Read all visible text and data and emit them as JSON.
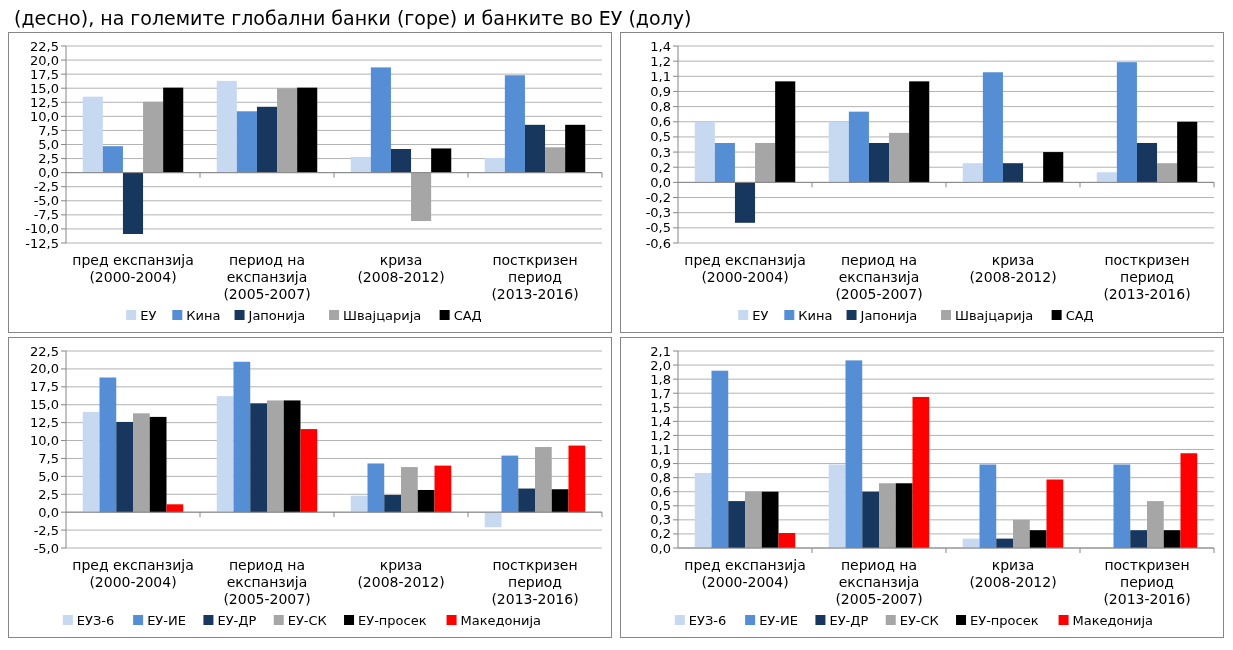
{
  "chart_data": [
    {
      "type": "bar",
      "title": "(десно), на големите глобални банки (горе) и банките во ЕУ (долу)",
      "categories": [
        "пред експанзија (2000-2004)",
        "период на експанзија (2005-2007)",
        "криза (2008-2012)",
        "посткризен период (2013-2016)"
      ],
      "series": [
        {
          "name": "ЕУ",
          "color": "#c6d9f1",
          "values": [
            13.5,
            16.3,
            2.8,
            2.6
          ]
        },
        {
          "name": "Кина",
          "color": "#558ed5",
          "values": [
            4.7,
            10.9,
            18.7,
            17.3
          ]
        },
        {
          "name": "Јапонија",
          "color": "#17375e",
          "values": [
            -10.9,
            11.7,
            4.2,
            8.5
          ]
        },
        {
          "name": "Швајцарија",
          "color": "#a6a6a6",
          "values": [
            12.6,
            15.0,
            -8.6,
            4.5
          ]
        },
        {
          "name": "САД",
          "color": "#000000",
          "values": [
            15.1,
            15.1,
            4.3,
            8.5
          ]
        }
      ],
      "ylim": [
        -12.5,
        22.5
      ],
      "yticks": [
        {
          "value": -12.5,
          "label": "-12,5"
        },
        {
          "value": -10,
          "label": "-10,0"
        },
        {
          "value": -7.5,
          "label": "-7,5"
        },
        {
          "value": -5,
          "label": "-5,0"
        },
        {
          "value": -2.5,
          "label": "-2,5"
        },
        {
          "value": 0,
          "label": "0,0"
        },
        {
          "value": 2.5,
          "label": "2,5"
        },
        {
          "value": 5,
          "label": "5,0"
        },
        {
          "value": 7.5,
          "label": "7,5"
        },
        {
          "value": 10,
          "label": "10,0"
        },
        {
          "value": 12.5,
          "label": "12,5"
        },
        {
          "value": 15,
          "label": "15,0"
        },
        {
          "value": 17.5,
          "label": "17,5"
        },
        {
          "value": 20,
          "label": "20,0"
        },
        {
          "value": 22.5,
          "label": "22,5"
        }
      ],
      "grid": "y",
      "legend": "bottom"
    },
    {
      "type": "bar",
      "categories": [
        "пред експанзија (2000-2004)",
        "период на експанзија (2005-2007)",
        "криза (2008-2012)",
        "посткризен период (2013-2016)"
      ],
      "series": [
        {
          "name": "ЕУ",
          "color": "#c6d9f1",
          "values": [
            0.6,
            0.6,
            0.19,
            0.1
          ]
        },
        {
          "name": "Кина",
          "color": "#558ed5",
          "values": [
            0.39,
            0.7,
            1.09,
            1.19
          ]
        },
        {
          "name": "Јапонија",
          "color": "#17375e",
          "values": [
            -0.4,
            0.39,
            0.19,
            0.39
          ]
        },
        {
          "name": "Швајцарија",
          "color": "#a6a6a6",
          "values": [
            0.39,
            0.49,
            null,
            0.19
          ]
        },
        {
          "name": "САД",
          "color": "#000000",
          "values": [
            1.0,
            1.0,
            0.3,
            0.6
          ]
        }
      ],
      "ylim": [
        -0.6,
        1.35
      ],
      "yticks": [
        {
          "value": -0.6,
          "label": "-0,6"
        },
        {
          "value": -0.45,
          "label": "-0,5"
        },
        {
          "value": -0.3,
          "label": "-0,3"
        },
        {
          "value": -0.15,
          "label": "-0,2"
        },
        {
          "value": 0,
          "label": "0,0"
        },
        {
          "value": 0.15,
          "label": "0,2"
        },
        {
          "value": 0.3,
          "label": "0,3"
        },
        {
          "value": 0.45,
          "label": "0,5"
        },
        {
          "value": 0.6,
          "label": "0,6"
        },
        {
          "value": 0.75,
          "label": "0,8"
        },
        {
          "value": 0.9,
          "label": "0,9"
        },
        {
          "value": 1.05,
          "label": "1,1"
        },
        {
          "value": 1.2,
          "label": "1,2"
        },
        {
          "value": 1.35,
          "label": "1,4"
        }
      ],
      "grid": "y",
      "legend": "bottom"
    },
    {
      "type": "bar",
      "categories": [
        "пред експанзија (2000-2004)",
        "период на експанзија (2005-2007)",
        "криза (2008-2012)",
        "посткризен период (2013-2016)"
      ],
      "series": [
        {
          "name": "ЕУЗ-6",
          "color": "#c6d9f1",
          "values": [
            14.0,
            16.2,
            2.3,
            -2.1
          ]
        },
        {
          "name": "ЕУ-ИЕ",
          "color": "#558ed5",
          "values": [
            18.8,
            21.0,
            6.8,
            7.9
          ]
        },
        {
          "name": "ЕУ-ДР",
          "color": "#17375e",
          "values": [
            12.6,
            15.2,
            2.4,
            3.3
          ]
        },
        {
          "name": "ЕУ-СК",
          "color": "#a6a6a6",
          "values": [
            13.8,
            15.6,
            6.3,
            9.1
          ]
        },
        {
          "name": "ЕУ-просек",
          "color": "#000000",
          "values": [
            13.3,
            15.6,
            3.1,
            3.2
          ]
        },
        {
          "name": "Македонија",
          "color": "#ff0000",
          "values": [
            1.1,
            11.6,
            6.5,
            9.3
          ]
        }
      ],
      "ylim": [
        -5,
        22.5
      ],
      "yticks": [
        {
          "value": -5,
          "label": "-5,0"
        },
        {
          "value": -2.5,
          "label": "-2,5"
        },
        {
          "value": 0,
          "label": "0,0"
        },
        {
          "value": 2.5,
          "label": "2,5"
        },
        {
          "value": 5,
          "label": "5,0"
        },
        {
          "value": 7.5,
          "label": "7,5"
        },
        {
          "value": 10,
          "label": "10,0"
        },
        {
          "value": 12.5,
          "label": "12,5"
        },
        {
          "value": 15,
          "label": "15,0"
        },
        {
          "value": 17.5,
          "label": "17,5"
        },
        {
          "value": 20,
          "label": "20,0"
        },
        {
          "value": 22.5,
          "label": "22,5"
        }
      ],
      "grid": "y",
      "legend": "bottom"
    },
    {
      "type": "bar",
      "categories": [
        "пред експанзија (2000-2004)",
        "период на експанзија (2005-2007)",
        "криза (2008-2012)",
        "посткризен период (2013-2016)"
      ],
      "series": [
        {
          "name": "ЕУЗ-6",
          "color": "#c6d9f1",
          "values": [
            0.8,
            0.89,
            0.1,
            null
          ]
        },
        {
          "name": "ЕУ-ИЕ",
          "color": "#558ed5",
          "values": [
            1.89,
            2.0,
            0.89,
            0.89
          ]
        },
        {
          "name": "ЕУ-ДР",
          "color": "#17375e",
          "values": [
            0.5,
            0.6,
            0.1,
            0.19
          ]
        },
        {
          "name": "ЕУ-СК",
          "color": "#a6a6a6",
          "values": [
            0.6,
            0.69,
            0.3,
            0.5
          ]
        },
        {
          "name": "ЕУ-просек",
          "color": "#000000",
          "values": [
            0.6,
            0.69,
            0.19,
            0.19
          ]
        },
        {
          "name": "Македонија",
          "color": "#ff0000",
          "values": [
            0.16,
            1.61,
            0.73,
            1.01
          ]
        }
      ],
      "ylim": [
        0,
        2.1
      ],
      "yticks": [
        {
          "value": 0,
          "label": "0,0"
        },
        {
          "value": 0.15,
          "label": "0,2"
        },
        {
          "value": 0.3,
          "label": "0,3"
        },
        {
          "value": 0.45,
          "label": "0,5"
        },
        {
          "value": 0.6,
          "label": "0,6"
        },
        {
          "value": 0.75,
          "label": "0,8"
        },
        {
          "value": 0.9,
          "label": "0,9"
        },
        {
          "value": 1.05,
          "label": "1,1"
        },
        {
          "value": 1.2,
          "label": "1,2"
        },
        {
          "value": 1.35,
          "label": "1,4"
        },
        {
          "value": 1.5,
          "label": "1,5"
        },
        {
          "value": 1.65,
          "label": "1,7"
        },
        {
          "value": 1.8,
          "label": "1,8"
        },
        {
          "value": 1.95,
          "label": "2,0"
        },
        {
          "value": 2.1,
          "label": "2,1"
        }
      ],
      "grid": "y",
      "legend": "bottom"
    }
  ]
}
